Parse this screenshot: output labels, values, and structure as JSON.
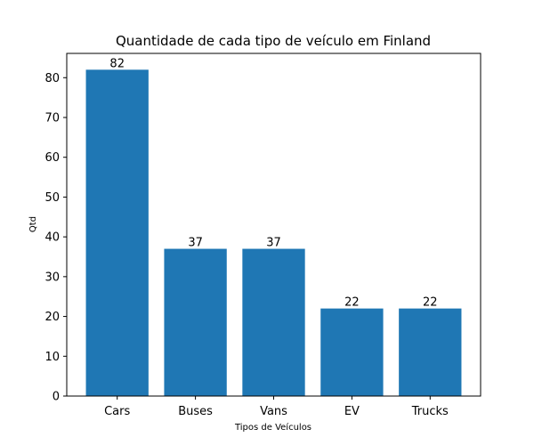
{
  "chart_data": {
    "type": "bar",
    "title": "Quantidade de cada tipo de veículo em Finland",
    "xlabel": "Tipos de Veículos",
    "ylabel": "Qtd",
    "categories": [
      "Cars",
      "Buses",
      "Vans",
      "EV",
      "Trucks"
    ],
    "values": [
      82,
      37,
      37,
      22,
      22
    ],
    "ylim": [
      0,
      86.1
    ],
    "yticks": [
      0,
      10,
      20,
      30,
      40,
      50,
      60,
      70,
      80
    ],
    "grid": false,
    "bar_color": "#1f77b4"
  }
}
